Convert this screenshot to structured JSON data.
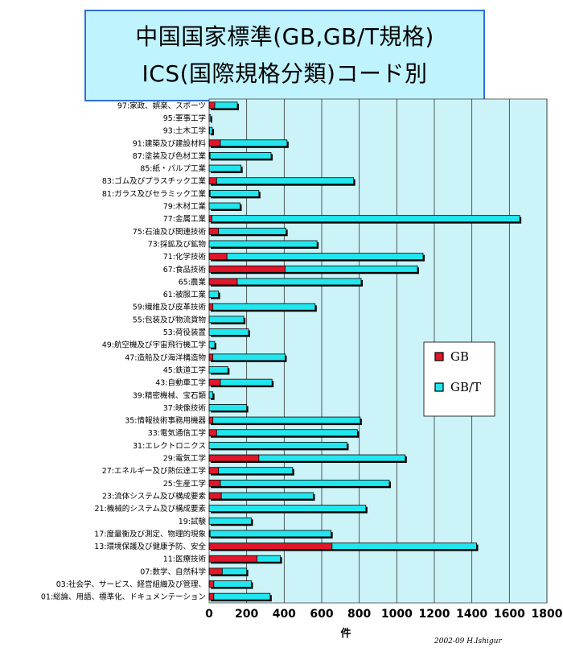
{
  "title": {
    "line1": "中国国家標準(GB,GB/T規格)",
    "line2": "ICS(国際規格分類)コード別"
  },
  "credit": "2002-09 H.Ishigur",
  "colors": {
    "gb": "#e0162b",
    "gbt": "#22e6ee",
    "plot_bg": "#ccf4f8",
    "outline": "#000000"
  },
  "chart_data": {
    "type": "bar",
    "orientation": "horizontal",
    "stacked": true,
    "xlabel": "件",
    "xlim": [
      0,
      1800
    ],
    "xticks": [
      0,
      200,
      400,
      600,
      800,
      1000,
      1200,
      1400,
      1600,
      1800
    ],
    "grid": true,
    "legend_position": "right",
    "series": [
      {
        "name": "GB",
        "key": "gb",
        "values": [
          30,
          0,
          2,
          60,
          5,
          0,
          40,
          5,
          0,
          15,
          50,
          0,
          95,
          405,
          150,
          0,
          20,
          0,
          0,
          0,
          20,
          0,
          60,
          0,
          0,
          20,
          40,
          0,
          265,
          50,
          60,
          65,
          0,
          0,
          5,
          655,
          255,
          70,
          25,
          25
        ]
      },
      {
        "name": "GB/T",
        "key": "gbt",
        "values": [
          120,
          8,
          15,
          355,
          325,
          170,
          730,
          260,
          165,
          1640,
          360,
          575,
          1045,
          705,
          660,
          50,
          545,
          185,
          210,
          30,
          385,
          100,
          275,
          20,
          200,
          785,
          750,
          735,
          780,
          395,
          900,
          490,
          835,
          225,
          645,
          770,
          125,
          130,
          200,
          300
        ]
      }
    ],
    "categories": [
      "97:家政、娯楽、スポーツ",
      "95:軍事工学",
      "93:土木工学",
      "91:建築及び建設材料",
      "87:塗装及び色材工業",
      "85:紙・パルプ工業",
      "83:ゴム及びプラスチック工業",
      "81:ガラス及びセラミック工業",
      "79:木材工業",
      "77:金属工業",
      "75:石油及び関連技術",
      "73:採鉱及び鉱物",
      "71:化学技術",
      "67:食品技術",
      "65:農業",
      "61:被服工業",
      "59:繊維及び皮革技術",
      "55:包装及び物流貨物",
      "53:荷役装置",
      "49:航空機及び宇宙飛行機工学",
      "47:造船及び海洋構造物",
      "45:鉄道工学",
      "43:自動車工学",
      "39:精密機械、宝石類",
      "37:映像技術",
      "35:情報技術事務用機器",
      "33:電気通信工学",
      "31:エレクトロニクス",
      "29:電気工学",
      "27:エネルギー及び熱伝達工学",
      "25:生産工学",
      "23:流体システム及び構成要素",
      "21:機械的システム及び構成要素",
      "19:試験",
      "17:度量衡及び測定、物理的現象",
      "13:環境保護及び健康予防、安全",
      "11:医療技術",
      "07:数学、自然科学",
      "03:社会学、サービス、経営組織及び管理、",
      "01:総論、用語、標準化、ドキュメンテーション"
    ]
  }
}
